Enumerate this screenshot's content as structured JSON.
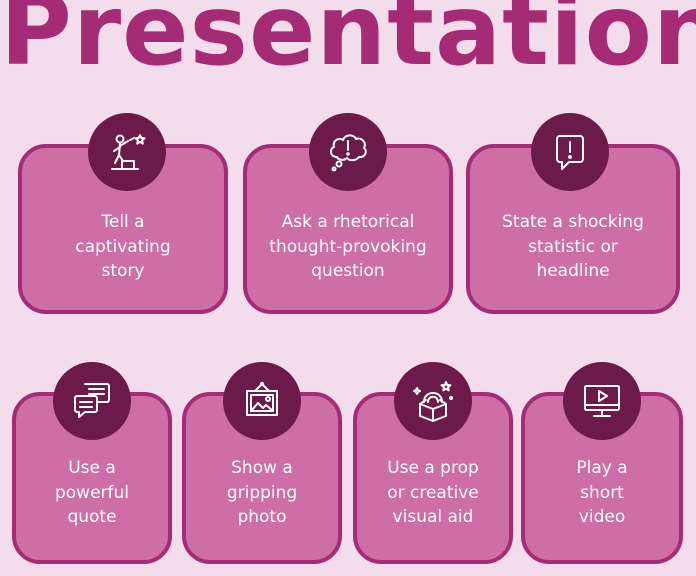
{
  "title": "Presentation",
  "colors": {
    "background": "#f3dceb",
    "title": "#a52b75",
    "card_fill": "#cd6ea6",
    "card_border": "#a52b75",
    "icon_badge": "#6b1a4a",
    "text": "#ffffff"
  },
  "cards": [
    {
      "icon": "person-on-podium-star-icon",
      "lines": [
        "Tell a",
        "captivating",
        "story"
      ]
    },
    {
      "icon": "thought-bubble-exclamation-icon",
      "lines": [
        "Ask a rhetorical",
        "thought-provoking",
        "question"
      ]
    },
    {
      "icon": "speech-bubble-exclamation-icon",
      "lines": [
        "State a shocking",
        "statistic or",
        "headline"
      ]
    },
    {
      "icon": "quote-chat-bubbles-icon",
      "lines": [
        "Use a",
        "powerful",
        "quote"
      ]
    },
    {
      "icon": "framed-photo-icon",
      "lines": [
        "Show a",
        "gripping",
        "photo"
      ]
    },
    {
      "icon": "magic-box-rainbow-icon",
      "lines": [
        "Use a prop",
        "or creative",
        "visual aid"
      ]
    },
    {
      "icon": "monitor-play-icon",
      "lines": [
        "Play a",
        "short",
        "video"
      ]
    }
  ]
}
